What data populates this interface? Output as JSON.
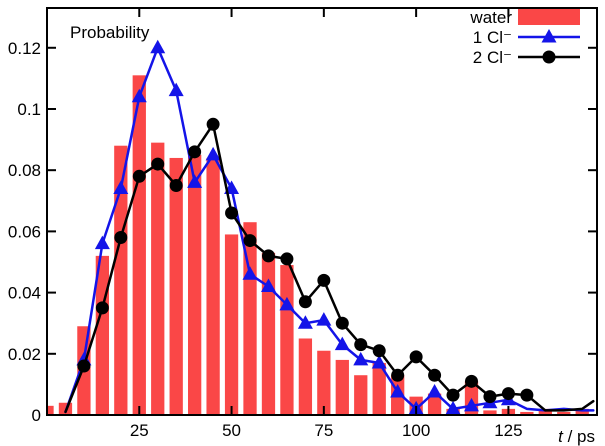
{
  "chart_data": {
    "type": "bar",
    "title": "Probability",
    "xlabel_italic": "t",
    "xlabel_rest": " / ps",
    "xlim": [
      0,
      149
    ],
    "ylim": [
      0,
      0.133
    ],
    "x_ticks": [
      25,
      50,
      75,
      100,
      125
    ],
    "x_tick_labels": [
      "25",
      "50",
      "75",
      "100",
      "125"
    ],
    "y_ticks": [
      0,
      0.02,
      0.04,
      0.06,
      0.08,
      0.1,
      0.12
    ],
    "y_tick_labels": [
      "0",
      "0.02",
      "0.04",
      "0.06",
      "0.08",
      "0.1",
      "0.12"
    ],
    "grid": false,
    "legend_position": "top-right-inside",
    "bar_width_t": 3.6,
    "series": [
      {
        "name": "water",
        "type": "bar",
        "color": "#fa4747",
        "points": [
          [
            0,
            0.003
          ],
          [
            5,
            0.004
          ],
          [
            10,
            0.029
          ],
          [
            15,
            0.052
          ],
          [
            20,
            0.088
          ],
          [
            25,
            0.111
          ],
          [
            30,
            0.089
          ],
          [
            35,
            0.084
          ],
          [
            40,
            0.085
          ],
          [
            45,
            0.084
          ],
          [
            50,
            0.059
          ],
          [
            55,
            0.063
          ],
          [
            60,
            0.053
          ],
          [
            65,
            0.049
          ],
          [
            70,
            0.025
          ],
          [
            75,
            0.021
          ],
          [
            80,
            0.018
          ],
          [
            85,
            0.013
          ],
          [
            90,
            0.017
          ],
          [
            95,
            0.013
          ],
          [
            100,
            0.006
          ],
          [
            105,
            0.007
          ],
          [
            110,
            0.002
          ],
          [
            115,
            0.011
          ],
          [
            120,
            0.0015
          ],
          [
            125,
            0.002
          ],
          [
            130,
            0.001
          ],
          [
            135,
            0.002
          ],
          [
            140,
            0.001
          ],
          [
            145,
            0.002
          ]
        ]
      },
      {
        "name": "1 Cl⁻",
        "type": "line",
        "marker": "triangle",
        "color": "#1414e8",
        "line_width": 2.5,
        "markers_t_range": [
          10,
          125
        ],
        "points": [
          [
            5,
            0.001
          ],
          [
            10,
            0.018
          ],
          [
            15,
            0.056
          ],
          [
            20,
            0.074
          ],
          [
            25,
            0.104
          ],
          [
            30,
            0.12
          ],
          [
            35,
            0.106
          ],
          [
            40,
            0.076
          ],
          [
            45,
            0.085
          ],
          [
            50,
            0.074
          ],
          [
            55,
            0.046
          ],
          [
            60,
            0.042
          ],
          [
            65,
            0.036
          ],
          [
            70,
            0.03
          ],
          [
            75,
            0.031
          ],
          [
            80,
            0.023
          ],
          [
            85,
            0.018
          ],
          [
            90,
            0.017
          ],
          [
            95,
            0.0075
          ],
          [
            100,
            0.002
          ],
          [
            105,
            0.0075
          ],
          [
            110,
            0.002
          ],
          [
            115,
            0.003
          ],
          [
            120,
            0.004
          ],
          [
            125,
            0.005
          ],
          [
            130,
            0.002
          ],
          [
            135,
            0.0015
          ],
          [
            140,
            0.002
          ],
          [
            145,
            0.0015
          ],
          [
            148,
            0.0015
          ]
        ]
      },
      {
        "name": "2 Cl⁻",
        "type": "line",
        "marker": "circle",
        "color": "#000000",
        "line_width": 2.5,
        "markers_t_range": [
          10,
          130
        ],
        "points": [
          [
            5,
            0.001
          ],
          [
            10,
            0.016
          ],
          [
            15,
            0.035
          ],
          [
            20,
            0.058
          ],
          [
            25,
            0.078
          ],
          [
            30,
            0.082
          ],
          [
            35,
            0.075
          ],
          [
            40,
            0.086
          ],
          [
            45,
            0.095
          ],
          [
            50,
            0.066
          ],
          [
            55,
            0.057
          ],
          [
            60,
            0.052
          ],
          [
            65,
            0.051
          ],
          [
            70,
            0.037
          ],
          [
            75,
            0.044
          ],
          [
            80,
            0.03
          ],
          [
            85,
            0.023
          ],
          [
            90,
            0.021
          ],
          [
            95,
            0.013
          ],
          [
            100,
            0.019
          ],
          [
            105,
            0.013
          ],
          [
            110,
            0.0065
          ],
          [
            115,
            0.011
          ],
          [
            120,
            0.006
          ],
          [
            125,
            0.007
          ],
          [
            130,
            0.0065
          ],
          [
            135,
            0.0015
          ],
          [
            140,
            0.0015
          ],
          [
            145,
            0.002
          ],
          [
            148,
            0.0045
          ]
        ]
      }
    ]
  }
}
